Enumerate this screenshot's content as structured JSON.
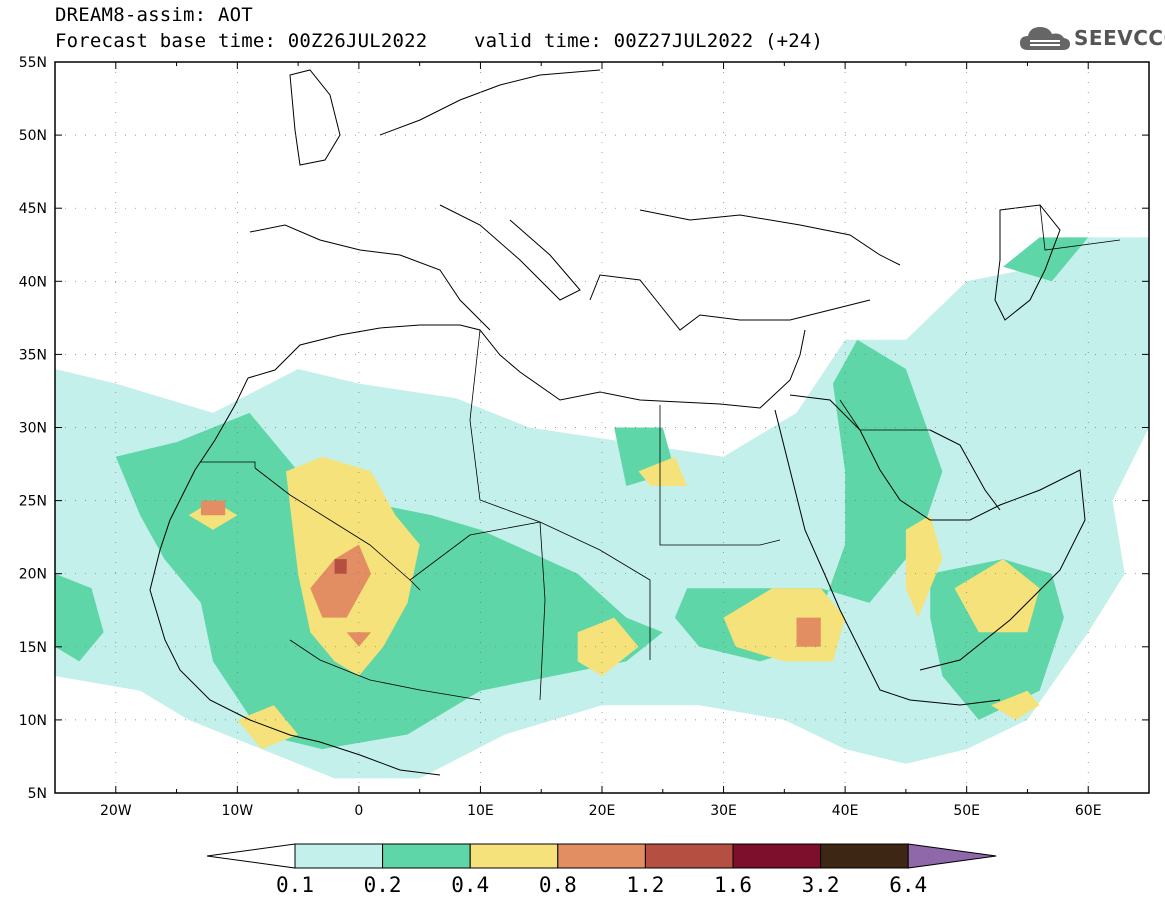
{
  "header": {
    "line1": "DREAM8-assim: AOT",
    "line2": "Forecast base time: 00Z26JUL2022    valid time: 00Z27JUL2022 (+24)"
  },
  "logo": {
    "text": "SEEVCCC",
    "icon": "cloud-icon"
  },
  "map": {
    "projection": "lat-lon",
    "lon_range": [
      -25,
      65
    ],
    "lat_range": [
      5,
      55
    ],
    "grid": true,
    "lat_labels": [
      "55N",
      "50N",
      "45N",
      "40N",
      "35N",
      "30N",
      "25N",
      "20N",
      "15N",
      "10N",
      "5N"
    ],
    "lon_labels": [
      "20W",
      "10W",
      "0",
      "10E",
      "20E",
      "30E",
      "40E",
      "50E",
      "60E"
    ]
  },
  "colorbar": {
    "levels": [
      "0.1",
      "0.2",
      "0.4",
      "0.8",
      "1.2",
      "1.6",
      "3.2",
      "6.4"
    ],
    "colors": [
      "#c3f0ea",
      "#5fd6a8",
      "#f5e27a",
      "#e38e62",
      "#b54f42",
      "#7d0e2c",
      "#3e2614",
      "#8e68a8"
    ],
    "under_color": "#ffffff"
  },
  "chart_data": {
    "type": "heatmap",
    "title": "DREAM8-assim: AOT",
    "variable": "AOT",
    "base_time": "00Z26JUL2022",
    "valid_time": "00Z27JUL2022",
    "lead_hours": 24,
    "xlim": [
      -25,
      65
    ],
    "ylim": [
      5,
      55
    ],
    "contours": [
      {
        "level": 0.1,
        "polygons": [
          [
            [
              -25,
              34
            ],
            [
              -20,
              33
            ],
            [
              -12,
              31
            ],
            [
              -5,
              34
            ],
            [
              0,
              33
            ],
            [
              8,
              32
            ],
            [
              14,
              30
            ],
            [
              22,
              29
            ],
            [
              30,
              28
            ],
            [
              36,
              31
            ],
            [
              40,
              36
            ],
            [
              45,
              36
            ],
            [
              50,
              40
            ],
            [
              56,
              41
            ],
            [
              60,
              43
            ],
            [
              65,
              43
            ],
            [
              65,
              30
            ],
            [
              62,
              25
            ],
            [
              63,
              20
            ],
            [
              60,
              16
            ],
            [
              55,
              10
            ],
            [
              50,
              8
            ],
            [
              45,
              7
            ],
            [
              40,
              8
            ],
            [
              35,
              10
            ],
            [
              28,
              11
            ],
            [
              20,
              11
            ],
            [
              12,
              9
            ],
            [
              5,
              6
            ],
            [
              -2,
              6
            ],
            [
              -8,
              8
            ],
            [
              -14,
              10
            ],
            [
              -18,
              12
            ],
            [
              -25,
              13
            ]
          ]
        ]
      },
      {
        "level": 0.2,
        "polygons": [
          [
            [
              -20,
              28
            ],
            [
              -15,
              29
            ],
            [
              -9,
              31
            ],
            [
              -6,
              28
            ],
            [
              -4,
              26
            ],
            [
              0,
              25
            ],
            [
              6,
              24
            ],
            [
              10,
              23
            ],
            [
              18,
              20
            ],
            [
              22,
              17
            ],
            [
              25,
              16
            ],
            [
              22,
              14
            ],
            [
              16,
              13
            ],
            [
              10,
              12
            ],
            [
              4,
              9
            ],
            [
              -3,
              8
            ],
            [
              -8,
              9
            ],
            [
              -12,
              14
            ],
            [
              -13,
              18
            ],
            [
              -16,
              21
            ],
            [
              -18,
              24
            ]
          ],
          [
            [
              27,
              19
            ],
            [
              33,
              19
            ],
            [
              38,
              19
            ],
            [
              42,
              18
            ],
            [
              46,
              22
            ],
            [
              48,
              27
            ],
            [
              45,
              34
            ],
            [
              41,
              36
            ],
            [
              39,
              33
            ],
            [
              40,
              27
            ],
            [
              40,
              22
            ],
            [
              37,
              15
            ],
            [
              33,
              14
            ],
            [
              28,
              15
            ],
            [
              26,
              17
            ]
          ],
          [
            [
              47,
              20
            ],
            [
              53,
              21
            ],
            [
              57,
              20
            ],
            [
              58,
              17
            ],
            [
              56,
              12
            ],
            [
              51,
              10
            ],
            [
              48,
              13
            ],
            [
              47,
              17
            ]
          ],
          [
            [
              -25,
              20
            ],
            [
              -22,
              19
            ],
            [
              -21,
              16
            ],
            [
              -23,
              14
            ],
            [
              -25,
              15
            ]
          ],
          [
            [
              53,
              41
            ],
            [
              57,
              40
            ],
            [
              60,
              43
            ],
            [
              56,
              43
            ]
          ],
          [
            [
              21,
              30
            ],
            [
              25,
              30
            ],
            [
              26,
              27
            ],
            [
              22,
              26
            ]
          ]
        ]
      },
      {
        "level": 0.4,
        "polygons": [
          [
            [
              -6,
              27
            ],
            [
              -3,
              28
            ],
            [
              1,
              27
            ],
            [
              3,
              24
            ],
            [
              5,
              22
            ],
            [
              4,
              18
            ],
            [
              2,
              15
            ],
            [
              0,
              13
            ],
            [
              -2,
              14
            ],
            [
              -4,
              16
            ],
            [
              -5,
              20
            ]
          ],
          [
            [
              -14,
              24
            ],
            [
              -12,
              25
            ],
            [
              -10,
              24
            ],
            [
              -12,
              23
            ]
          ],
          [
            [
              30,
              17
            ],
            [
              34,
              19
            ],
            [
              38,
              19
            ],
            [
              40,
              17
            ],
            [
              39,
              14
            ],
            [
              35,
              14
            ],
            [
              31,
              15
            ]
          ],
          [
            [
              18,
              16
            ],
            [
              21,
              17
            ],
            [
              23,
              15
            ],
            [
              20,
              13
            ],
            [
              18,
              14
            ]
          ],
          [
            [
              45,
              23
            ],
            [
              47,
              24
            ],
            [
              48,
              21
            ],
            [
              46,
              17
            ],
            [
              45,
              19
            ]
          ],
          [
            [
              49,
              19
            ],
            [
              53,
              21
            ],
            [
              56,
              19
            ],
            [
              55,
              16
            ],
            [
              51,
              16
            ]
          ],
          [
            [
              52,
              11
            ],
            [
              55,
              12
            ],
            [
              56,
              11
            ],
            [
              54,
              10
            ]
          ],
          [
            [
              23,
              27
            ],
            [
              26,
              28
            ],
            [
              27,
              26
            ],
            [
              24,
              26
            ]
          ],
          [
            [
              -10,
              10
            ],
            [
              -7,
              11
            ],
            [
              -5,
              9
            ],
            [
              -8,
              8
            ]
          ]
        ]
      },
      {
        "level": 0.8,
        "polygons": [
          [
            [
              -4,
              19
            ],
            [
              -2,
              21
            ],
            [
              0,
              22
            ],
            [
              1,
              20
            ],
            [
              -1,
              17
            ],
            [
              -3,
              17
            ]
          ],
          [
            [
              -13,
              25
            ],
            [
              -11,
              25
            ],
            [
              -11,
              24
            ],
            [
              -13,
              24
            ]
          ],
          [
            [
              -1,
              16
            ],
            [
              1,
              16
            ],
            [
              0,
              15
            ]
          ],
          [
            [
              36,
              17
            ],
            [
              38,
              17
            ],
            [
              38,
              15
            ],
            [
              36,
              15
            ]
          ]
        ]
      },
      {
        "level": 1.2,
        "polygons": [
          [
            [
              -2,
              21
            ],
            [
              -1,
              21
            ],
            [
              -1,
              20
            ],
            [
              -2,
              20
            ]
          ]
        ]
      }
    ]
  }
}
